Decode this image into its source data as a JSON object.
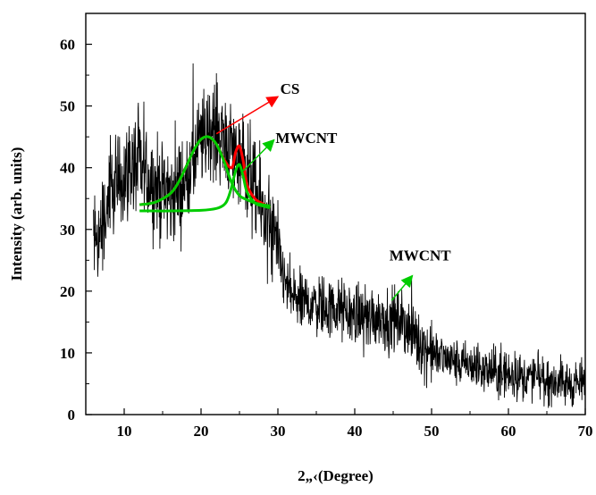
{
  "chart_data": {
    "type": "line",
    "title": "",
    "xlabel": "2„‹(Degree)",
    "ylabel": "Intensity (arb. units)",
    "xlim": [
      5,
      70
    ],
    "ylim": [
      0,
      65
    ],
    "xticks": [
      10,
      20,
      30,
      40,
      50,
      60,
      70
    ],
    "yticks": [
      0,
      10,
      20,
      30,
      40,
      50,
      60
    ],
    "grid": false,
    "legend": "none",
    "series": [
      {
        "color": "#000000",
        "style": "noisy-raw",
        "x": [
          6,
          7,
          8,
          9,
          10,
          11,
          12,
          13,
          14,
          15,
          16,
          17,
          18,
          19,
          20,
          21,
          22,
          23,
          24,
          25,
          26,
          27,
          28,
          29,
          30,
          31,
          32,
          33,
          34,
          35,
          36,
          37,
          38,
          39,
          40,
          41,
          42,
          43,
          44,
          45,
          46,
          47,
          48,
          49,
          50,
          51,
          52,
          53,
          54,
          55,
          56,
          57,
          58,
          59,
          60,
          61,
          62,
          63,
          64,
          65,
          66,
          67,
          68,
          69,
          70
        ],
        "y": [
          27,
          30,
          34,
          37,
          39,
          40,
          40,
          39,
          37,
          36,
          35,
          36,
          38,
          41,
          44,
          46,
          46,
          45,
          43,
          41,
          39,
          36,
          33,
          30,
          26,
          21,
          19,
          18,
          18,
          18,
          17.5,
          17,
          17,
          16.5,
          16,
          16,
          16,
          16,
          15.5,
          15.5,
          15,
          14,
          12.5,
          11,
          10,
          9.5,
          9,
          8.5,
          8,
          8,
          7.5,
          7,
          7,
          6.5,
          6.5,
          6.5,
          6,
          6,
          6,
          5.5,
          5.5,
          5,
          5,
          5,
          5
        ]
      },
      {
        "color": "#ff0000",
        "style": "fit",
        "x": [
          12,
          14,
          16,
          17,
          18,
          19,
          20,
          21,
          22,
          23,
          24,
          24.5,
          25,
          25.5,
          26,
          27,
          28,
          29
        ],
        "y": [
          34,
          34.4,
          35.8,
          37.5,
          40,
          42.7,
          44.6,
          45,
          43.8,
          41.3,
          40,
          42.5,
          43.5,
          41,
          37.2,
          35,
          34.2,
          33.5
        ]
      },
      {
        "color": "#00cc00",
        "style": "fit",
        "x": [
          12,
          14,
          16,
          17,
          18,
          19,
          20,
          21,
          22,
          23,
          24,
          25,
          26,
          27,
          28,
          29
        ],
        "y": [
          34,
          34.4,
          35.8,
          37.5,
          40,
          42.7,
          44.6,
          45,
          43.8,
          41,
          37.5,
          35.5,
          34.8,
          34.3,
          34,
          33.8
        ]
      },
      {
        "color": "#00cc00",
        "style": "fit",
        "x": [
          12,
          16,
          20,
          22,
          23,
          23.5,
          24,
          24.5,
          25,
          25.5,
          26,
          27,
          28,
          29
        ],
        "y": [
          33,
          33,
          33.1,
          33.4,
          34,
          35,
          37,
          39.5,
          40.5,
          38.5,
          36,
          34.3,
          33.8,
          33.5
        ]
      }
    ],
    "annotations": [
      {
        "label": "CS",
        "color": "#ff0000",
        "arrow_from": [
          22,
          45.5
        ],
        "arrow_to": [
          30,
          51.5
        ],
        "text_at": [
          30.3,
          52
        ]
      },
      {
        "label": "MWCNT",
        "color": "#00cc00",
        "arrow_from": [
          25.5,
          39.5
        ],
        "arrow_to": [
          29.5,
          44.5
        ],
        "text_at": [
          29.7,
          44
        ]
      },
      {
        "label": "MWCNT",
        "color": "#00cc00",
        "arrow_from": [
          44.8,
          18.5
        ],
        "arrow_to": [
          47.5,
          22.5
        ],
        "text_at": [
          44.5,
          25
        ]
      }
    ]
  }
}
